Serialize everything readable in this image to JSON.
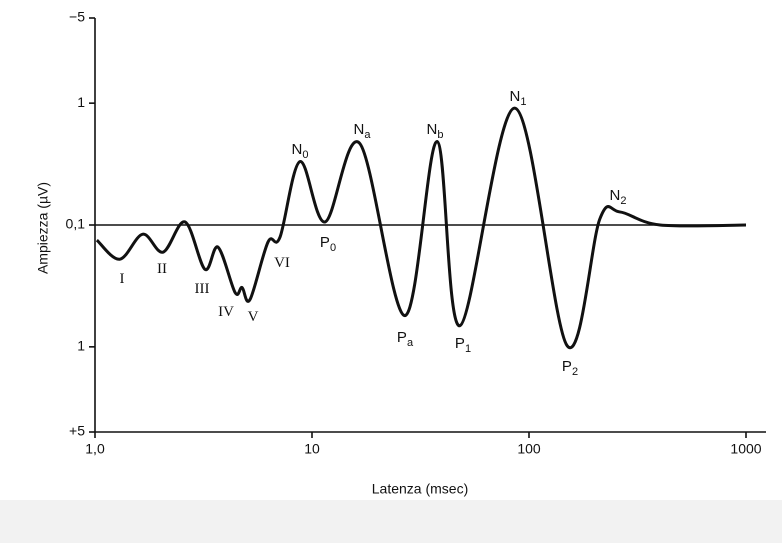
{
  "chart_data": {
    "type": "line",
    "x_label": "Latenza (msec)",
    "y_label": "Ampiezza (µV)",
    "xscale": "log",
    "yscale": "signed-log",
    "yinvert": true,
    "xlim": [
      1,
      1000
    ],
    "xticks": [
      {
        "value": 1,
        "label": "1,0"
      },
      10,
      100,
      1000
    ],
    "ylim": [
      -5,
      5
    ],
    "yticks": [
      {
        "value": -5,
        "label": "−5"
      },
      {
        "value": -1,
        "label": "1"
      },
      {
        "value": 0.1,
        "label": "0,1"
      },
      1,
      {
        "value": 5,
        "label": "+5"
      }
    ],
    "baseline": 0.1,
    "color": "#111111",
    "x": [
      1.02,
      1.3,
      1.66,
      2.06,
      2.6,
      3.21,
      3.69,
      4.42,
      4.76,
      5.18,
      6.27,
      7.12,
      8.81,
      11.5,
      16.6,
      26.8,
      37.7,
      48.1,
      86.2,
      150,
      212,
      262,
      402,
      1000
    ],
    "values": [
      0.133,
      0.191,
      0.119,
      0.167,
      -0.106,
      0.231,
      0.152,
      0.358,
      0.326,
      0.409,
      0.138,
      0.126,
      -0.332,
      -0.106,
      -0.467,
      0.554,
      -0.485,
      0.67,
      -0.909,
      0.981,
      -0.112,
      -0.128,
      0.1,
      0.1
    ],
    "annotations": [
      {
        "text": "I"
      },
      {
        "text": "II"
      },
      {
        "text": "III"
      },
      {
        "text": "IV"
      },
      {
        "text": "V"
      },
      {
        "text": "VI"
      },
      {
        "text": "N",
        "sub": "0"
      },
      {
        "text": "P",
        "sub": "0"
      },
      {
        "text": "N",
        "sub": "a"
      },
      {
        "text": "P",
        "sub": "a"
      },
      {
        "text": "N",
        "sub": "b"
      },
      {
        "text": "P",
        "sub": "1"
      },
      {
        "text": "N",
        "sub": "1"
      },
      {
        "text": "P",
        "sub": "2"
      },
      {
        "text": "N",
        "sub": "2"
      }
    ]
  }
}
